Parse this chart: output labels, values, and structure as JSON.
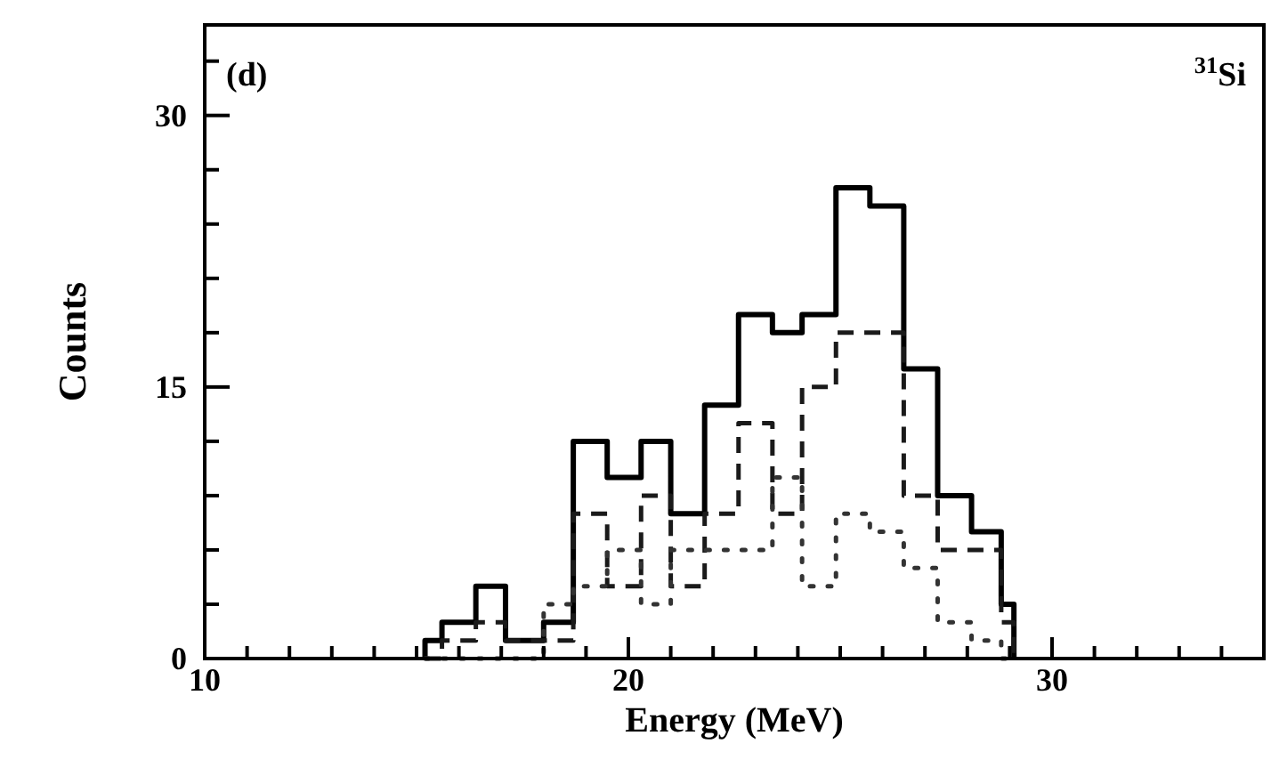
{
  "chart_data": {
    "type": "histogram",
    "xlabel": "Energy (MeV)",
    "ylabel": "Counts",
    "annotations": [
      "(d)",
      "$^{31}$Si"
    ],
    "bins": [
      15.2,
      15.6,
      16.4,
      17.1,
      18.0,
      18.7,
      19.5,
      20.3,
      21.0,
      21.8,
      22.6,
      23.4,
      24.1,
      24.9,
      25.7,
      26.5,
      27.3,
      28.1,
      28.8,
      29.1
    ],
    "series": [
      {
        "color": "#000000",
        "line_style": "solid",
        "values": [
          1,
          2,
          4,
          1,
          2,
          12,
          10,
          12,
          8,
          14,
          19,
          18,
          19,
          26,
          25,
          16,
          9,
          7,
          3
        ]
      },
      {
        "color": "#1a1a1a",
        "line_style": "dashed",
        "values": [
          0,
          1,
          2,
          1,
          1,
          8,
          4,
          9,
          4,
          8,
          13,
          8,
          15,
          18,
          18,
          9,
          6,
          6,
          2
        ]
      },
      {
        "color": "#333333",
        "line_style": "dotted",
        "values": [
          0,
          0,
          0,
          0,
          3,
          4,
          6,
          3,
          6,
          6,
          6,
          10,
          4,
          8,
          7,
          5,
          2,
          1,
          0
        ]
      }
    ],
    "xlim": [
      10,
      35
    ],
    "xticks": [
      10,
      {
        "value": 11,
        "label": null
      },
      {
        "value": 12,
        "label": null
      },
      {
        "value": 13,
        "label": null
      },
      {
        "value": 14,
        "label": null
      },
      {
        "value": 15,
        "label": null
      },
      {
        "value": 16,
        "label": null
      },
      {
        "value": 17,
        "label": null
      },
      {
        "value": 18,
        "label": null
      },
      {
        "value": 19,
        "label": null
      },
      20,
      {
        "value": 21,
        "label": null
      },
      {
        "value": 22,
        "label": null
      },
      {
        "value": 23,
        "label": null
      },
      {
        "value": 24,
        "label": null
      },
      {
        "value": 25,
        "label": null
      },
      {
        "value": 26,
        "label": null
      },
      {
        "value": 27,
        "label": null
      },
      {
        "value": 28,
        "label": null
      },
      {
        "value": 29,
        "label": null
      },
      30,
      {
        "value": 31,
        "label": null
      },
      {
        "value": 32,
        "label": null
      },
      {
        "value": 33,
        "label": null
      },
      {
        "value": 34,
        "label": null
      }
    ],
    "ylim": [
      0,
      35
    ],
    "yticks": [
      0,
      {
        "value": 3,
        "label": null
      },
      {
        "value": 6,
        "label": null
      },
      {
        "value": 9,
        "label": null
      },
      {
        "value": 12,
        "label": null
      },
      15,
      {
        "value": 18,
        "label": null
      },
      {
        "value": 21,
        "label": null
      },
      {
        "value": 24,
        "label": null
      },
      {
        "value": 27,
        "label": null
      },
      30,
      {
        "value": 33,
        "label": null
      }
    ],
    "grid": false
  }
}
